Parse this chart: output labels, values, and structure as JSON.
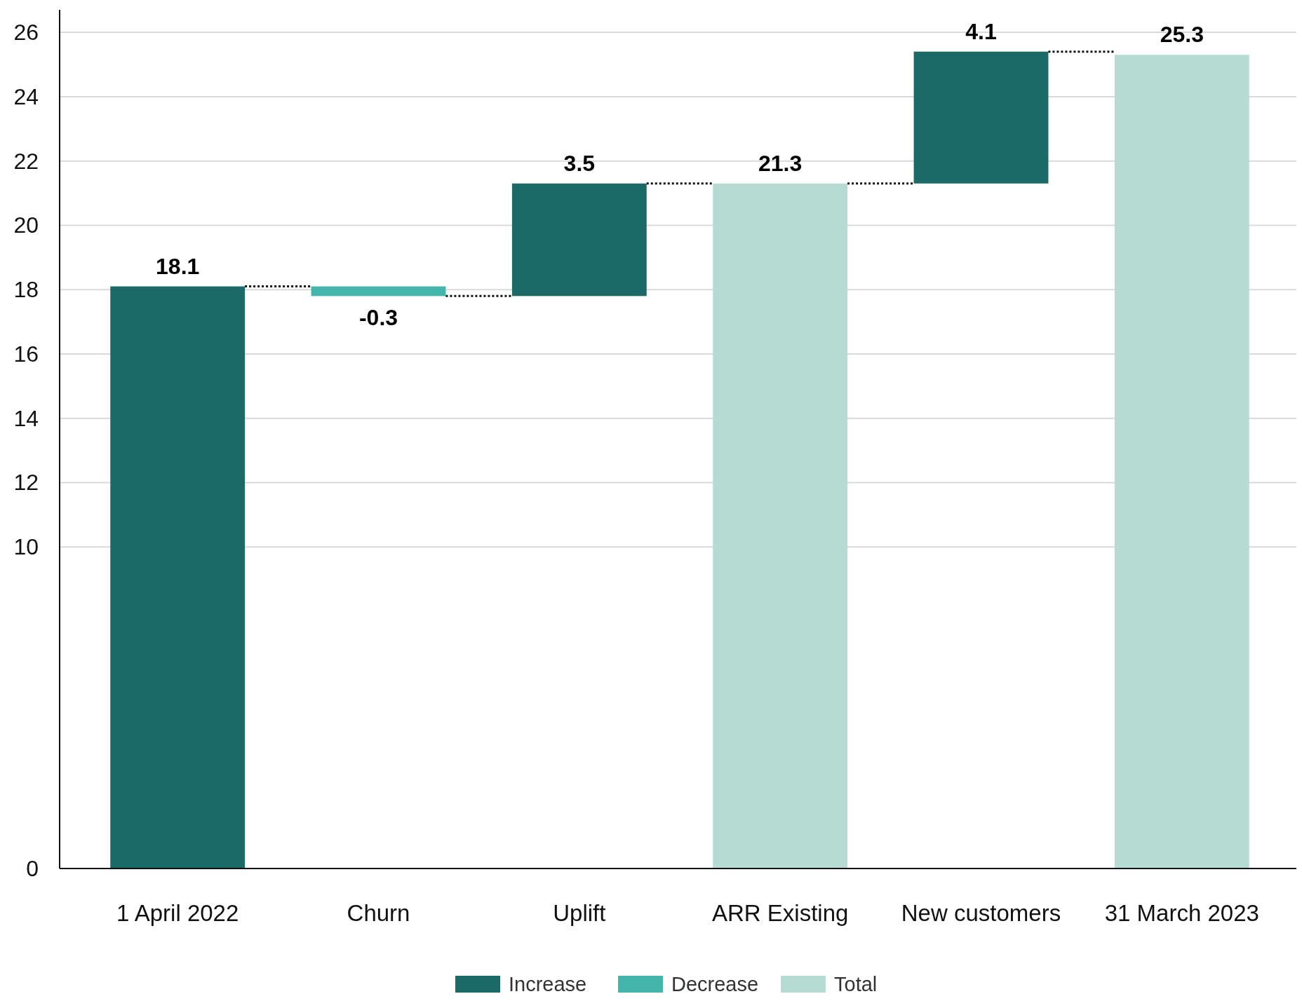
{
  "chart_data": {
    "type": "bar",
    "categories": [
      "1 April 2022",
      "Churn",
      "Uplift",
      "ARR Existing",
      "New customers",
      "31 March 2023"
    ],
    "stacked": false,
    "series": [
      {
        "name": "Increase",
        "color": "#1b6a68",
        "values": [
          18.1,
          null,
          3.5,
          null,
          4.1,
          null
        ],
        "base": [
          0,
          null,
          17.8,
          null,
          21.3,
          null
        ]
      },
      {
        "name": "Decrease",
        "color": "#43b5aa",
        "values": [
          null,
          -0.3,
          null,
          null,
          null,
          null
        ],
        "base": [
          null,
          18.1,
          null,
          null,
          null,
          null
        ]
      },
      {
        "name": "Total",
        "color": "#b6dbd3",
        "values": [
          null,
          null,
          null,
          21.3,
          null,
          25.3
        ],
        "base": [
          null,
          null,
          null,
          0,
          null,
          0
        ]
      }
    ],
    "ylim": [
      0,
      26.7
    ],
    "yticks": [
      0,
      10,
      12,
      14,
      16,
      18,
      20,
      22,
      24,
      26
    ],
    "grid": "y",
    "legend": "bottom",
    "data_labels": true
  }
}
